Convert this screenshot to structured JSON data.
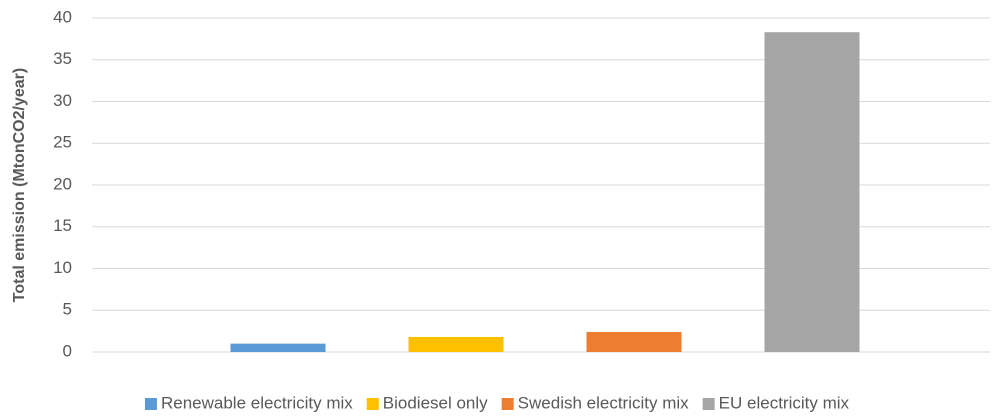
{
  "chart_data": {
    "type": "bar",
    "y_label": "Total emission (MtonCO2/year)",
    "series": [
      {
        "name": "Renewable electricity mix",
        "color": "#5b9bd5",
        "values": [
          1.0
        ]
      },
      {
        "name": "Biodiesel only",
        "color": "#ffc000",
        "values": [
          1.8
        ]
      },
      {
        "name": "Swedish electricity mix",
        "color": "#ed7d31",
        "values": [
          2.4
        ]
      },
      {
        "name": "EU electricity mix",
        "color": "#a5a5a5",
        "values": [
          38.3
        ]
      }
    ],
    "ylim": [
      0,
      40
    ],
    "yticks": [
      0,
      5,
      10,
      15,
      20,
      25,
      30,
      35,
      40
    ],
    "grid": true,
    "legend": "bottom"
  }
}
